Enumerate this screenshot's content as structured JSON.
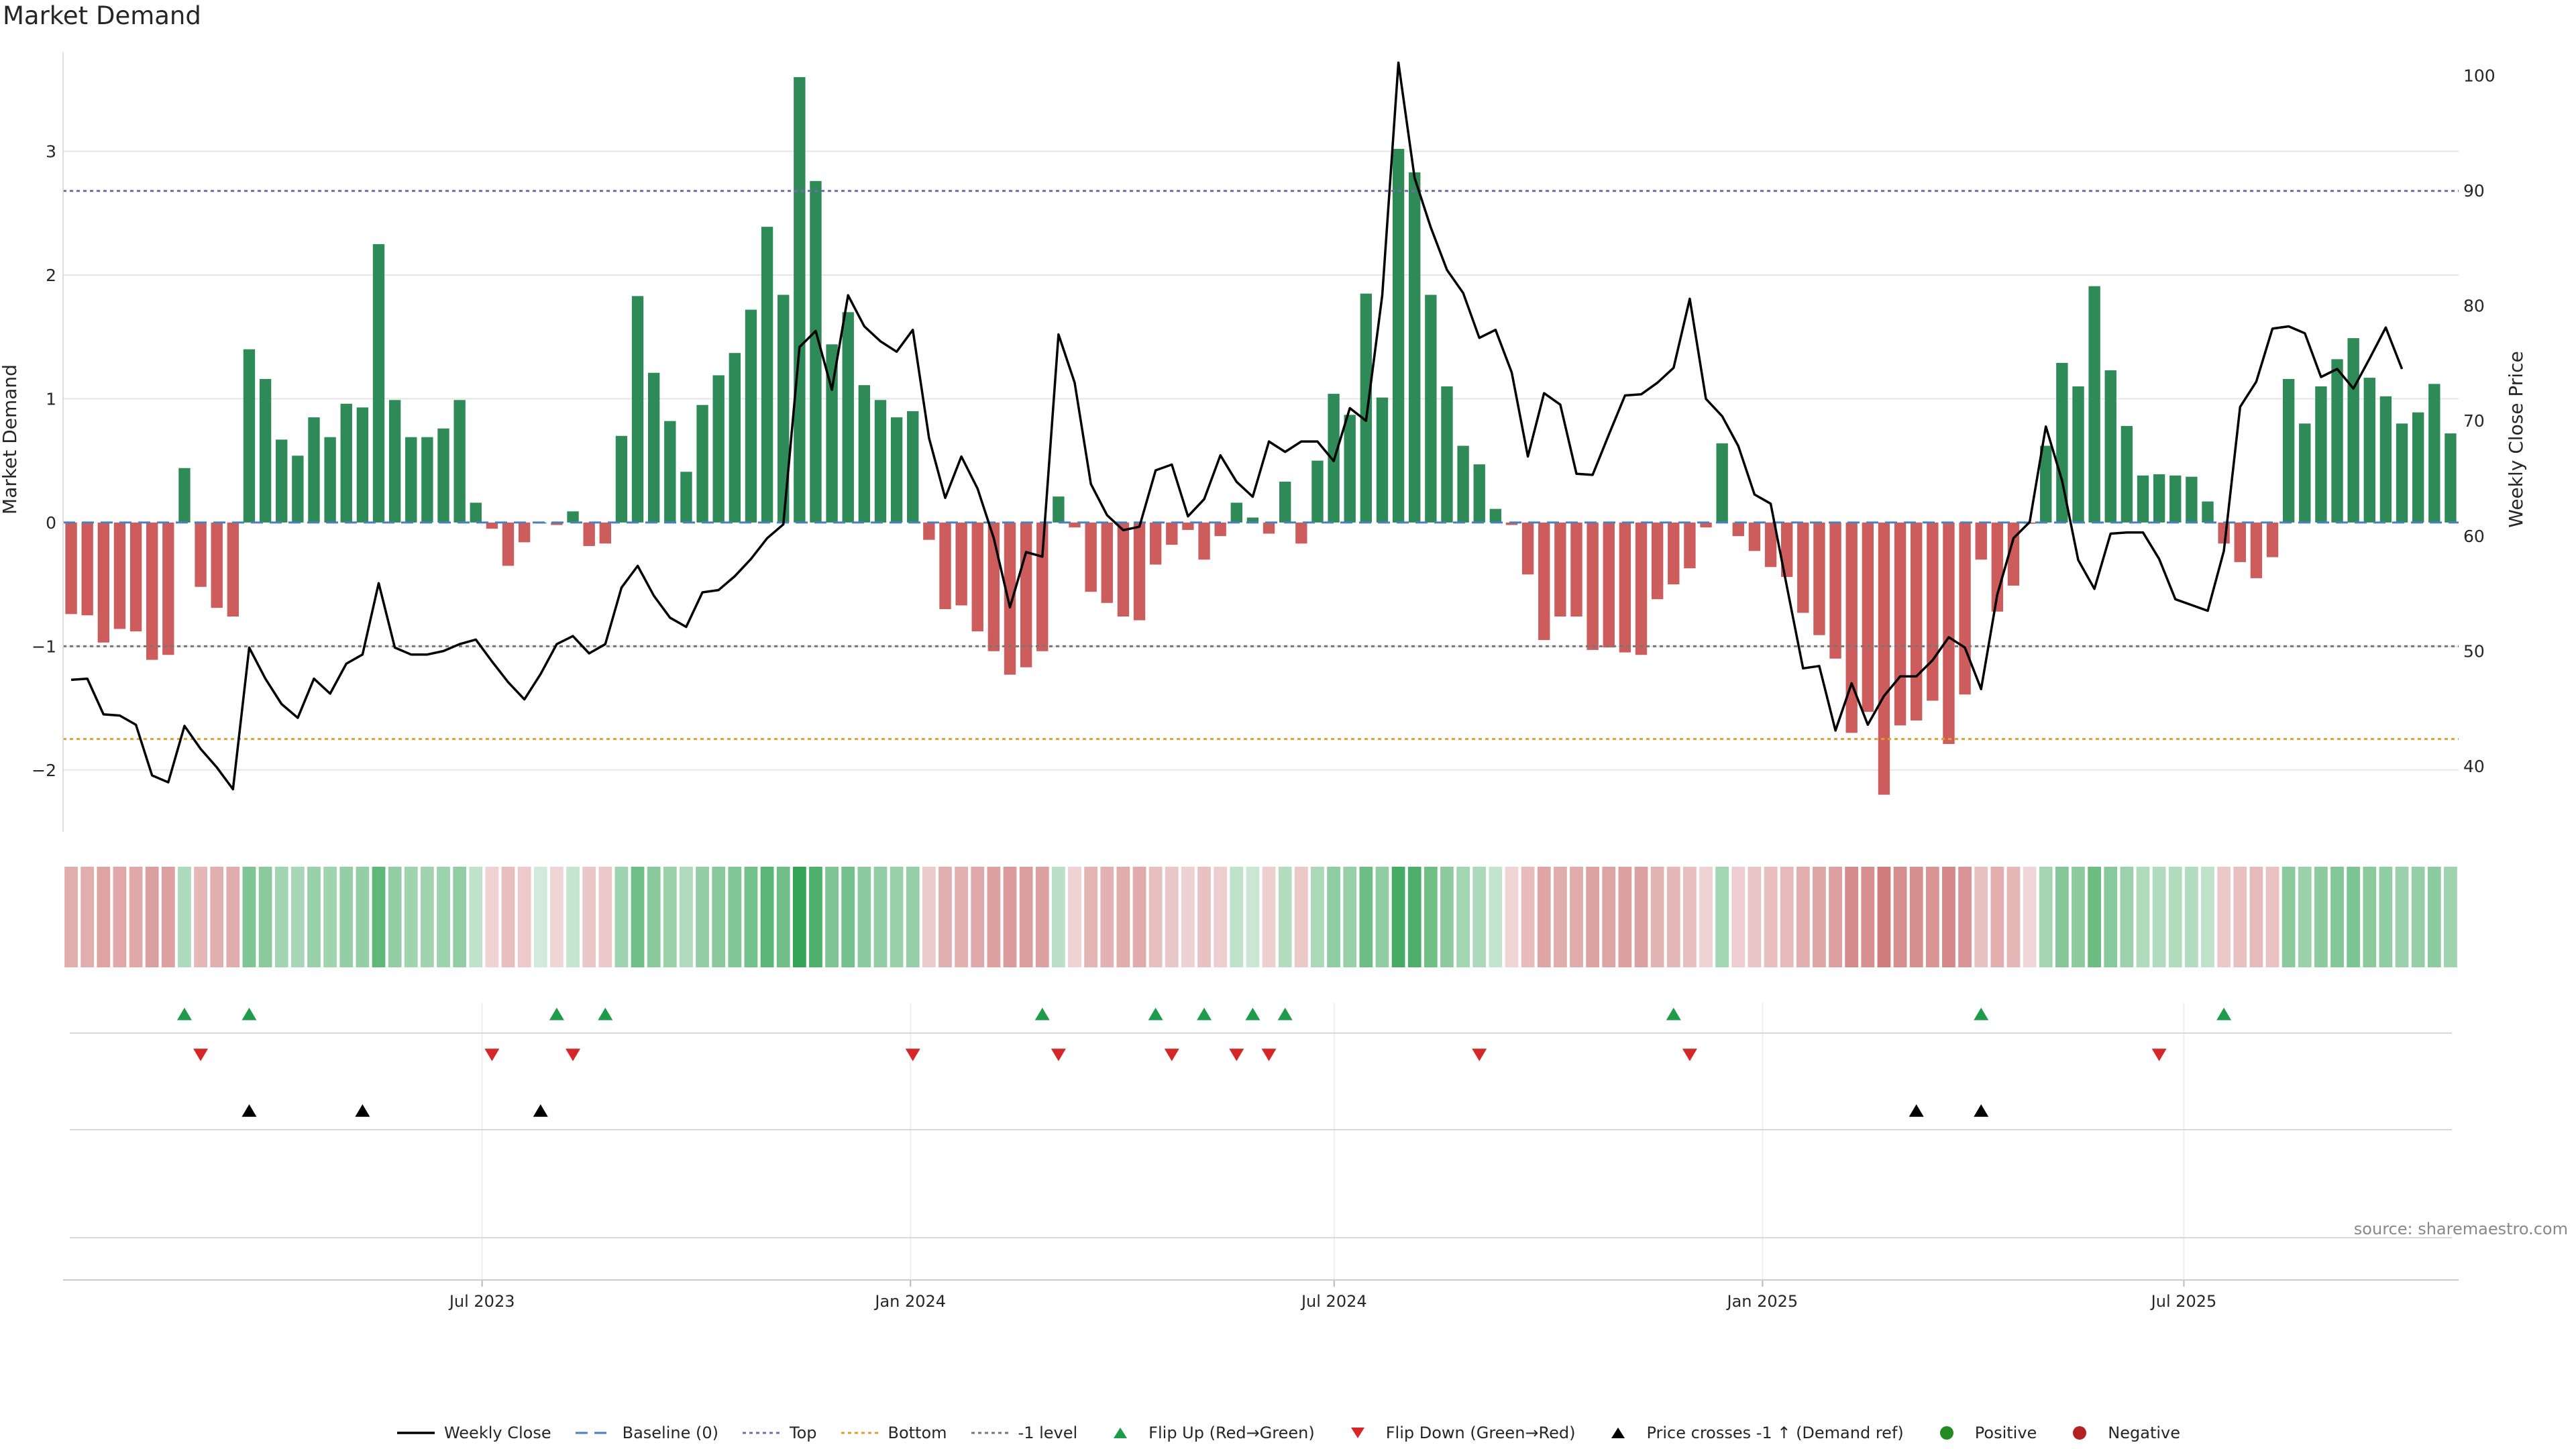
{
  "title": "Market Demand",
  "source": "source: sharemaestro.com",
  "colors": {
    "positive": "#2e8b57",
    "negative": "#cd5c5c",
    "price": "#000000",
    "top": "#7b68b4",
    "bottom": "#e0a030",
    "minus_one": "#777777",
    "baseline": "#4a80c0",
    "flip_up": "#1e9b4b",
    "flip_down": "#d62728",
    "cross": "#000000",
    "pos_dot": "#228b22",
    "neg_dot": "#b22222",
    "grid": "#e6e6e6"
  },
  "chart_data": {
    "type": "bar",
    "ylabel": "Market Demand",
    "y2label": "Weekly Close Price",
    "ylim": [
      -2.5,
      3.8
    ],
    "y2lim": [
      34.3,
      102.0
    ],
    "yticks": [
      -2,
      -1,
      0,
      1,
      2,
      3
    ],
    "ytick_labels": [
      "−2",
      "−1",
      "0",
      "1",
      "2",
      "3"
    ],
    "y2ticks": [
      40,
      50,
      60,
      70,
      80,
      90,
      100
    ],
    "y2tick_labels": [
      "40",
      "50",
      "60",
      "70",
      "80",
      "90",
      "100"
    ],
    "x_start": "2023-01-02",
    "x_end": "2025-10-27",
    "xticks": [
      {
        "date": "2023-07-01",
        "label": "Jul 2023"
      },
      {
        "date": "2024-01-01",
        "label": "Jan 2024"
      },
      {
        "date": "2024-07-01",
        "label": "Jul 2024"
      },
      {
        "date": "2025-01-01",
        "label": "Jan 2025"
      },
      {
        "date": "2025-07-01",
        "label": "Jul 2025"
      }
    ],
    "reference_lines": {
      "top": 2.68,
      "bottom": -1.75,
      "minus_one": -1.0,
      "baseline": 0
    },
    "demand": [
      -0.74,
      -0.75,
      -0.97,
      -0.86,
      -0.88,
      -1.11,
      -1.07,
      0.44,
      -0.52,
      -0.69,
      -0.76,
      1.4,
      1.16,
      0.67,
      0.54,
      0.85,
      0.69,
      0.96,
      0.93,
      2.25,
      0.99,
      0.69,
      0.69,
      0.76,
      0.99,
      0.16,
      -0.05,
      -0.35,
      -0.16,
      0.0,
      -0.02,
      0.09,
      -0.19,
      -0.17,
      0.7,
      1.83,
      1.21,
      0.82,
      0.41,
      0.95,
      1.19,
      1.37,
      1.72,
      2.39,
      1.84,
      3.6,
      2.76,
      1.44,
      1.7,
      1.11,
      0.99,
      0.85,
      0.9,
      -0.14,
      -0.7,
      -0.67,
      -0.88,
      -1.04,
      -1.23,
      -1.17,
      -1.04,
      0.21,
      -0.04,
      -0.56,
      -0.65,
      -0.76,
      -0.79,
      -0.34,
      -0.18,
      -0.06,
      -0.3,
      -0.11,
      0.16,
      0.04,
      -0.09,
      0.33,
      -0.17,
      0.5,
      1.04,
      0.87,
      1.85,
      1.01,
      3.02,
      2.83,
      1.84,
      1.1,
      0.62,
      0.47,
      0.11,
      -0.02,
      -0.42,
      -0.95,
      -0.76,
      -0.76,
      -1.03,
      -1.01,
      -1.05,
      -1.07,
      -0.62,
      -0.5,
      -0.37,
      -0.04,
      0.64,
      -0.11,
      -0.23,
      -0.36,
      -0.44,
      -0.73,
      -0.91,
      -1.1,
      -1.7,
      -1.53,
      -2.2,
      -1.64,
      -1.6,
      -1.44,
      -1.79,
      -1.39,
      -0.3,
      -0.72,
      -0.51,
      -0.01,
      0.62,
      1.29,
      1.1,
      1.91,
      1.23,
      0.78,
      0.38,
      0.39,
      0.38,
      0.37,
      0.17,
      -0.17,
      -0.32,
      -0.45,
      -0.28,
      1.16,
      0.8,
      1.1,
      1.32,
      1.49,
      1.17,
      1.02,
      0.8,
      0.89,
      1.12,
      0.72
    ],
    "price": [
      47.5,
      47.6,
      44.5,
      44.4,
      43.6,
      39.2,
      38.6,
      43.5,
      41.5,
      39.9,
      38.0,
      50.3,
      47.6,
      45.4,
      44.2,
      47.6,
      46.3,
      48.9,
      49.7,
      55.9,
      50.3,
      49.7,
      49.7,
      50.0,
      50.6,
      51.0,
      49.1,
      47.3,
      45.8,
      48.0,
      50.6,
      51.3,
      49.8,
      50.6,
      55.5,
      57.4,
      54.8,
      52.9,
      52.1,
      55.1,
      55.3,
      56.5,
      58.0,
      59.8,
      61.0,
      76.4,
      77.8,
      72.7,
      80.9,
      78.2,
      76.9,
      76.0,
      77.9,
      68.5,
      63.3,
      66.9,
      64.1,
      59.8,
      53.8,
      58.6,
      58.2,
      77.5,
      73.3,
      64.5,
      61.8,
      60.5,
      60.8,
      65.7,
      66.2,
      61.7,
      63.2,
      67.0,
      64.7,
      63.4,
      68.2,
      67.3,
      68.2,
      68.2,
      66.5,
      71.1,
      70.0,
      80.9,
      101.1,
      91.1,
      86.8,
      83.1,
      81.1,
      77.2,
      77.9,
      74.2,
      66.9,
      72.4,
      71.4,
      65.4,
      65.3,
      68.8,
      72.2,
      72.3,
      73.3,
      74.6,
      80.6,
      71.9,
      70.4,
      67.8,
      63.6,
      62.8,
      55.6,
      48.5,
      48.7,
      43.1,
      47.2,
      43.6,
      46.1,
      47.8,
      47.8,
      49.2,
      51.2,
      50.3,
      46.7,
      54.9,
      59.8,
      61.2,
      69.5,
      64.8,
      57.9,
      55.4,
      60.2,
      60.3,
      60.3,
      58.0,
      54.5,
      54.0,
      53.5,
      58.7,
      71.2,
      73.4,
      78.0,
      78.2,
      77.6,
      73.8,
      74.5,
      72.8,
      75.4,
      78.1,
      74.5
    ]
  },
  "flip_up_weeks": [
    7,
    11,
    30,
    33,
    60,
    67,
    70,
    73,
    75,
    99,
    118,
    133
  ],
  "flip_down_weeks": [
    8,
    26,
    31,
    52,
    61,
    68,
    72,
    74,
    87,
    100,
    129
  ],
  "cross_weeks": [
    11,
    18,
    29,
    114,
    118
  ],
  "legend": [
    {
      "key": "weekly_close",
      "label": "Weekly Close"
    },
    {
      "key": "baseline",
      "label": "Baseline (0)"
    },
    {
      "key": "top",
      "label": "Top"
    },
    {
      "key": "bottom",
      "label": "Bottom"
    },
    {
      "key": "minus_one",
      "label": "-1 level"
    },
    {
      "key": "flip_up",
      "label": "Flip Up (Red→Green)"
    },
    {
      "key": "flip_down",
      "label": "Flip Down (Green→Red)"
    },
    {
      "key": "cross",
      "label": "Price crosses -1 ↑ (Demand ref)"
    },
    {
      "key": "positive",
      "label": "Positive"
    },
    {
      "key": "negative",
      "label": "Negative"
    }
  ]
}
